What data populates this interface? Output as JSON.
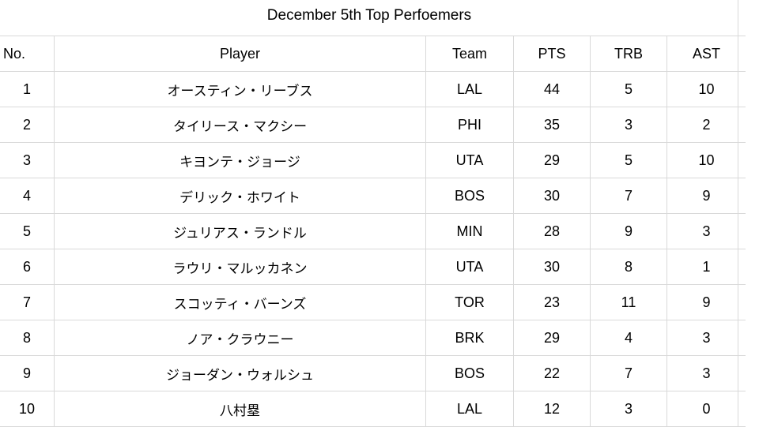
{
  "title": "December 5th Top Perfoemers",
  "columns": [
    "No.",
    "Player",
    "Team",
    "PTS",
    "TRB",
    "AST"
  ],
  "rows": [
    {
      "no": "1",
      "player": "オースティン・リーブス",
      "team": "LAL",
      "pts": "44",
      "trb": "5",
      "ast": "10"
    },
    {
      "no": "2",
      "player": "タイリース・マクシー",
      "team": "PHI",
      "pts": "35",
      "trb": "3",
      "ast": "2"
    },
    {
      "no": "3",
      "player": "キヨンテ・ジョージ",
      "team": "UTA",
      "pts": "29",
      "trb": "5",
      "ast": "10"
    },
    {
      "no": "4",
      "player": "デリック・ホワイト",
      "team": "BOS",
      "pts": "30",
      "trb": "7",
      "ast": "9"
    },
    {
      "no": "5",
      "player": "ジュリアス・ランドル",
      "team": "MIN",
      "pts": "28",
      "trb": "9",
      "ast": "3"
    },
    {
      "no": "6",
      "player": "ラウリ・マルッカネン",
      "team": "UTA",
      "pts": "30",
      "trb": "8",
      "ast": "1"
    },
    {
      "no": "7",
      "player": "スコッティ・バーンズ",
      "team": "TOR",
      "pts": "23",
      "trb": "11",
      "ast": "9"
    },
    {
      "no": "8",
      "player": "ノア・クラウニー",
      "team": "BRK",
      "pts": "29",
      "trb": "4",
      "ast": "3"
    },
    {
      "no": "9",
      "player": "ジョーダン・ウォルシュ",
      "team": "BOS",
      "pts": "22",
      "trb": "7",
      "ast": "3"
    },
    {
      "no": "10",
      "player": "八村塁",
      "team": "LAL",
      "pts": "12",
      "trb": "3",
      "ast": "0"
    }
  ]
}
